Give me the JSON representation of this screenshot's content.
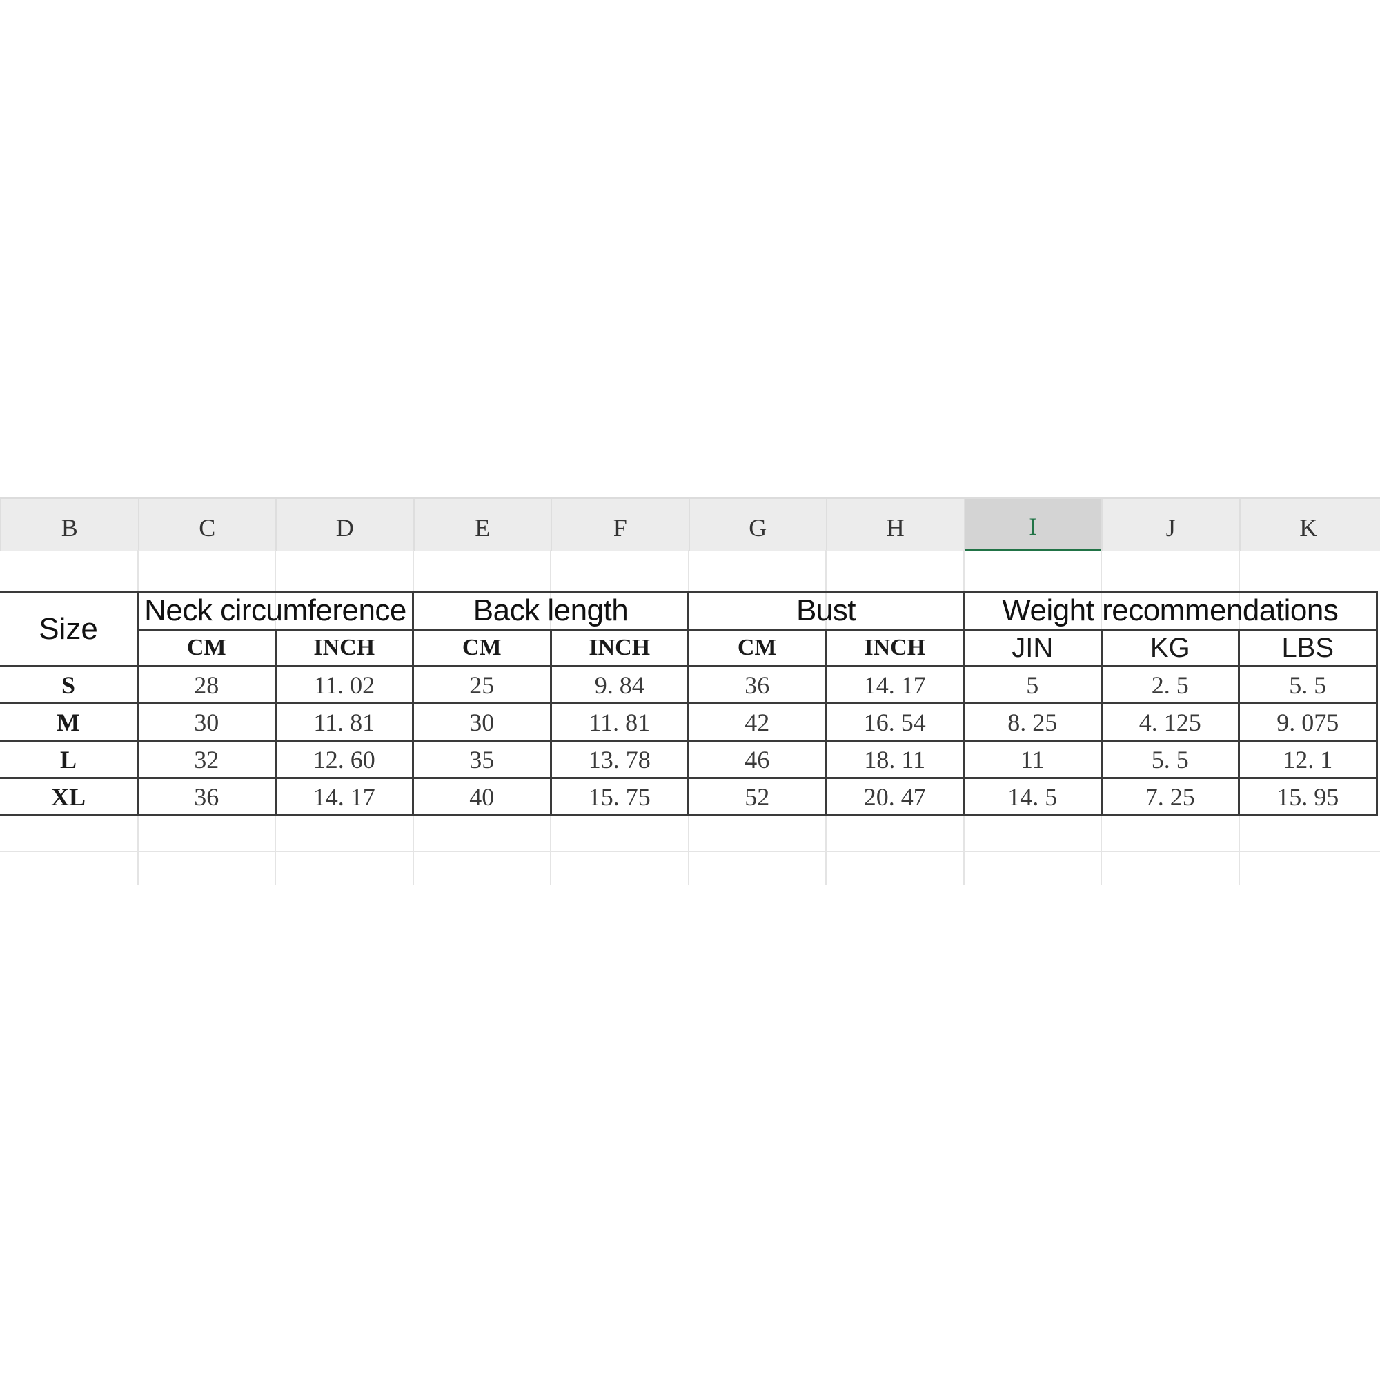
{
  "column_headers": [
    "B",
    "C",
    "D",
    "E",
    "F",
    "G",
    "H",
    "I",
    "J",
    "K"
  ],
  "selected_column": "I",
  "accent_color": "#217346",
  "table": {
    "size_label": "Size",
    "groups": [
      "Neck circumference",
      "Back length",
      "Bust",
      "Weight recommendations"
    ],
    "units": [
      "CM",
      "INCH",
      "CM",
      "INCH",
      "CM",
      "INCH",
      "JIN",
      "KG",
      "LBS"
    ],
    "rows": [
      {
        "size": "S",
        "values": [
          "28",
          "11. 02",
          "25",
          "9. 84",
          "36",
          "14. 17",
          "5",
          "2. 5",
          "5. 5"
        ]
      },
      {
        "size": "M",
        "values": [
          "30",
          "11. 81",
          "30",
          "11. 81",
          "42",
          "16. 54",
          "8. 25",
          "4. 125",
          "9. 075"
        ]
      },
      {
        "size": "L",
        "values": [
          "32",
          "12. 60",
          "35",
          "13. 78",
          "46",
          "18. 11",
          "11",
          "5. 5",
          "12. 1"
        ]
      },
      {
        "size": "XL",
        "values": [
          "36",
          "14. 17",
          "40",
          "15. 75",
          "52",
          "20. 47",
          "14. 5",
          "7. 25",
          "15. 95"
        ]
      }
    ]
  }
}
